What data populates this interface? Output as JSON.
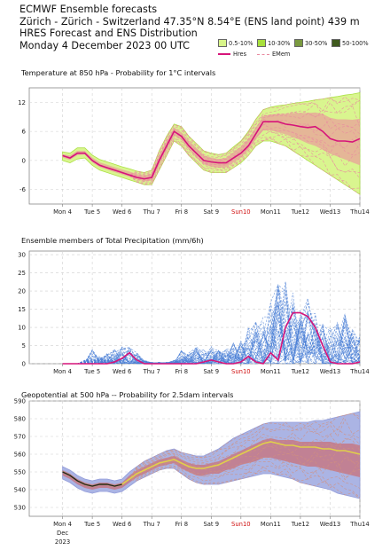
{
  "header": {
    "line1": "ECMWF Ensemble forecasts",
    "line2": "Zürich - Zürich - Switzerland 47.35°N 8.54°E (ENS land point) 439 m",
    "line3": "HRES Forecast and ENS Distribution",
    "line4": "Monday  4 December 2023 00 UTC"
  },
  "legend": {
    "bands": [
      {
        "label": "0.5-10%",
        "color": "#d8f58a"
      },
      {
        "label": "10-30%",
        "color": "#a8e03c"
      },
      {
        "label": "30-50%",
        "color": "#7a9a40"
      },
      {
        "label": "50-100%",
        "color": "#3f5a1e"
      }
    ],
    "hres_label": "Hres",
    "emem_label": "EMem",
    "hres_color": "#d6147a",
    "emem_color": "#e98aa0"
  },
  "chart_data": [
    {
      "type": "area",
      "title": "Temperature at 850 hPa - Probability for 1°C intervals",
      "x_ticks": [
        "Mon 4",
        "Tue 5",
        "Wed 6",
        "Thu 7",
        "Fri 8",
        "Sat 9",
        "Sun10",
        "Mon11",
        "Tue12",
        "Wed13",
        "Thu14"
      ],
      "ylim": [
        -9,
        15
      ],
      "yticks": [
        -6,
        0,
        6,
        12
      ],
      "grid": true,
      "x_days": [
        0,
        0.25,
        0.5,
        0.75,
        1,
        1.25,
        1.5,
        1.75,
        2,
        2.25,
        2.5,
        2.75,
        3,
        3.25,
        3.5,
        3.75,
        4,
        4.25,
        4.5,
        4.75,
        5,
        5.25,
        5.5,
        5.75,
        6,
        6.25,
        6.5,
        6.75,
        7,
        7.25,
        7.5,
        7.75,
        8,
        8.25,
        8.5,
        8.75,
        9,
        9.25,
        9.5,
        9.75,
        10
      ],
      "hres": [
        1,
        0.5,
        1.5,
        1.5,
        0,
        -1,
        -1.5,
        -2,
        -2.5,
        -3,
        -3.5,
        -3.8,
        -3.5,
        0,
        3,
        6,
        5,
        3,
        1.5,
        0,
        -0.3,
        -0.5,
        -0.5,
        0.5,
        1.5,
        3,
        5.5,
        8,
        8,
        8,
        7.5,
        7.3,
        7,
        6.8,
        7,
        6,
        4.5,
        4,
        4,
        3.8,
        4.5
      ],
      "band_low": [
        0,
        -0.5,
        0.3,
        0.5,
        -1,
        -2,
        -2.5,
        -3,
        -3.5,
        -4,
        -4.5,
        -5,
        -5,
        -2,
        1,
        4,
        3,
        1,
        -0.5,
        -2,
        -2.5,
        -2.5,
        -2.5,
        -1.5,
        -0.5,
        1,
        3,
        4,
        4,
        3.5,
        3,
        2,
        1,
        0,
        -1,
        -2,
        -3,
        -4,
        -5,
        -6,
        -7
      ],
      "band_high": [
        1.8,
        1.5,
        2.6,
        2.6,
        1.1,
        0.2,
        -0.3,
        -0.8,
        -1.3,
        -1.7,
        -2.2,
        -2.5,
        -2,
        2,
        5,
        7.5,
        7,
        5,
        3.5,
        2,
        1.5,
        1.2,
        1.5,
        2.8,
        4,
        6,
        8.5,
        10.5,
        11,
        11.3,
        11.5,
        11.8,
        12,
        12.2,
        12.5,
        12.7,
        13,
        13.2,
        13.5,
        13.7,
        14
      ],
      "core_low": [
        0.6,
        0.1,
        1.1,
        1.2,
        -0.4,
        -1.4,
        -1.9,
        -2.4,
        -2.9,
        -3.4,
        -3.9,
        -4.3,
        -4.2,
        -0.8,
        2.2,
        5.2,
        4.2,
        2.2,
        0.7,
        -0.8,
        -1.3,
        -1.5,
        -1.4,
        -0.4,
        0.6,
        2.2,
        4.4,
        6.2,
        6.2,
        5.8,
        5.4,
        4.8,
        4.2,
        3.5,
        3,
        2.2,
        1.4,
        0.8,
        0.2,
        -0.4,
        -1
      ],
      "core_high": [
        1.3,
        1,
        2,
        2,
        0.6,
        -0.4,
        -0.9,
        -1.4,
        -1.9,
        -2.3,
        -2.8,
        -3.1,
        -2.7,
        1,
        4,
        6.8,
        5.8,
        3.8,
        2.4,
        1,
        0.6,
        0.3,
        0.5,
        1.7,
        2.8,
        4.4,
        6.8,
        9.2,
        9.5,
        9.6,
        9.6,
        9.8,
        9.8,
        9.8,
        9.9,
        9.6,
        8.8,
        8.5,
        8.5,
        8.4,
        8.6
      ]
    },
    {
      "type": "line",
      "title": "Ensemble members of Total Precipitation (mm/6h)",
      "x_ticks": [
        "Mon 4",
        "Tue 5",
        "Wed 6",
        "Thu 7",
        "Fri 8",
        "Sat 9",
        "Sun10",
        "Mon11",
        "Tue12",
        "Wed13",
        "Thu14"
      ],
      "ylim": [
        0,
        31
      ],
      "yticks": [
        0,
        5,
        10,
        15,
        20,
        25,
        30
      ],
      "grid": true,
      "x_days": [
        0,
        0.25,
        0.5,
        0.75,
        1,
        1.25,
        1.5,
        1.75,
        2,
        2.25,
        2.5,
        2.75,
        3,
        3.25,
        3.5,
        3.75,
        4,
        4.25,
        4.5,
        4.75,
        5,
        5.25,
        5.5,
        5.75,
        6,
        6.25,
        6.5,
        6.75,
        7,
        7.25,
        7.5,
        7.75,
        8,
        8.25,
        8.5,
        8.75,
        9,
        9.25,
        9.5,
        9.75,
        10
      ],
      "hres": [
        0,
        0,
        0,
        0,
        0,
        0,
        0,
        0.5,
        1.5,
        3,
        1,
        0,
        0,
        0,
        0,
        0,
        0,
        0,
        0,
        0.5,
        1,
        0.5,
        0,
        0,
        0.5,
        2,
        0.5,
        0,
        3,
        1,
        10,
        14,
        14,
        13,
        10,
        5,
        0.5,
        0,
        0,
        0,
        0.5
      ],
      "envelope": [
        0,
        0,
        0,
        1,
        4,
        2,
        3,
        4,
        5,
        4.5,
        3,
        1,
        0.5,
        0.5,
        0.5,
        1,
        4,
        3,
        5,
        4,
        5,
        4,
        4,
        6,
        7,
        10,
        12,
        14,
        18,
        22,
        26,
        20,
        15,
        18,
        14,
        12,
        10,
        12,
        14,
        10,
        8
      ]
    },
    {
      "type": "area",
      "title": "Geopotential at 500 hPa -- Probability for 2.5dam intervals",
      "x_ticks": [
        "Mon 4",
        "Tue 5",
        "Wed 6",
        "Thu 7",
        "Fri 8",
        "Sat 9",
        "Sun10",
        "Mon11",
        "Tue12",
        "Wed13",
        "Thu14"
      ],
      "x_sub": [
        "Dec",
        "2023"
      ],
      "ylim": [
        525,
        590
      ],
      "yticks": [
        530,
        540,
        550,
        560,
        570,
        580,
        590
      ],
      "grid": true,
      "x_days": [
        0,
        0.25,
        0.5,
        0.75,
        1,
        1.25,
        1.5,
        1.75,
        2,
        2.25,
        2.5,
        2.75,
        3,
        3.25,
        3.5,
        3.75,
        4,
        4.25,
        4.5,
        4.75,
        5,
        5.25,
        5.5,
        5.75,
        6,
        6.25,
        6.5,
        6.75,
        7,
        7.25,
        7.5,
        7.75,
        8,
        8.25,
        8.5,
        8.75,
        9,
        9.25,
        9.5,
        9.75,
        10
      ],
      "hres": [
        550,
        548,
        545,
        543,
        542,
        543,
        543,
        542,
        543,
        546,
        549,
        551,
        553,
        555,
        556,
        557,
        555,
        553,
        552,
        552,
        553,
        554,
        556,
        558,
        560,
        562,
        564,
        566,
        567,
        566,
        565,
        565,
        564,
        564,
        564,
        563,
        563,
        562,
        562,
        561,
        560
      ],
      "band_low": [
        546,
        544,
        541,
        539,
        538,
        539,
        539,
        538,
        539,
        542,
        545,
        547,
        549,
        551,
        552,
        552,
        549,
        546,
        544,
        543,
        543,
        543,
        544,
        545,
        546,
        547,
        548,
        549,
        549,
        548,
        547,
        546,
        544,
        543,
        542,
        541,
        540,
        538,
        537,
        536,
        535
      ],
      "band_high": [
        553,
        551,
        548,
        546,
        545,
        546,
        546,
        545,
        546,
        550,
        553,
        556,
        558,
        560,
        562,
        563,
        561,
        560,
        559,
        559,
        561,
        563,
        566,
        569,
        571,
        573,
        575,
        577,
        578,
        578,
        578,
        578,
        578,
        578,
        579,
        579,
        580,
        581,
        582,
        583,
        584
      ],
      "core_low": [
        548,
        546,
        543,
        541,
        540,
        541,
        541,
        540,
        541,
        544,
        547,
        549,
        551,
        553,
        554,
        555,
        552,
        550,
        548,
        548,
        549,
        549,
        551,
        552,
        554,
        555,
        556,
        558,
        558,
        557,
        556,
        555,
        554,
        553,
        553,
        552,
        551,
        550,
        549,
        548,
        547
      ],
      "core_high": [
        551,
        549,
        546,
        544,
        543,
        544,
        544,
        543,
        544,
        548,
        551,
        553,
        555,
        557,
        558,
        559,
        557,
        555,
        554,
        554,
        555,
        556,
        558,
        560,
        562,
        564,
        566,
        568,
        569,
        568,
        568,
        568,
        567,
        567,
        567,
        567,
        567,
        566,
        566,
        566,
        565
      ]
    }
  ]
}
